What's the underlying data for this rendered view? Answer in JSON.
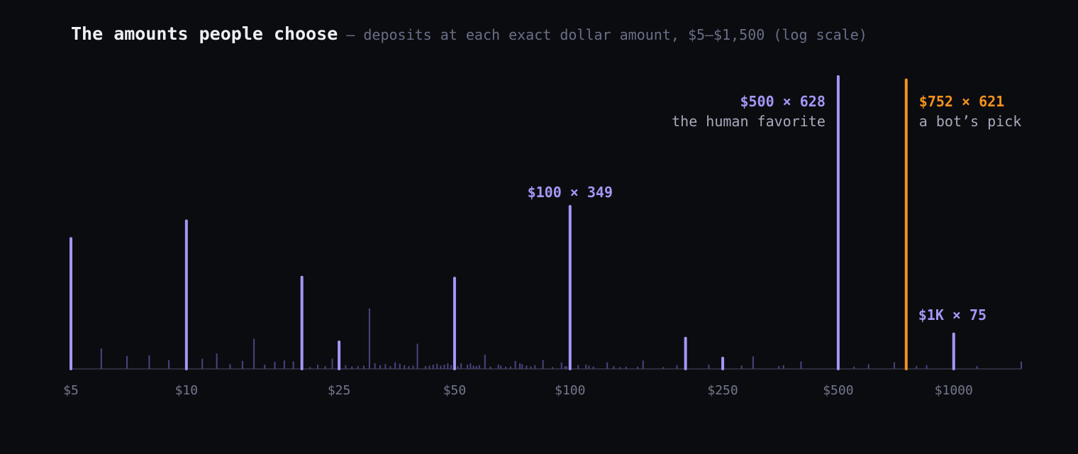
{
  "title": "The amounts people choose",
  "subtitle": "— deposits at each exact dollar amount, $5–$1,500 (log scale)",
  "colors": {
    "background": "#0b0c10",
    "bar_highlight": "#a497f6",
    "bar_minor": "#4a4380",
    "bot": "#f5921e",
    "axis": "#2b2c3a",
    "tick_text": "#73778c"
  },
  "chart_data": {
    "type": "bar",
    "title": "The amounts people choose",
    "subtitle": "deposits at each exact dollar amount, $5–$1,500 (log scale)",
    "x_scale": "log",
    "xlim": [
      5,
      1500
    ],
    "ylim": [
      0,
      628
    ],
    "grid": false,
    "x_ticks": [
      {
        "value": 5,
        "label": "$5"
      },
      {
        "value": 10,
        "label": "$10"
      },
      {
        "value": 25,
        "label": "$25"
      },
      {
        "value": 50,
        "label": "$50"
      },
      {
        "value": 100,
        "label": "$100"
      },
      {
        "value": 250,
        "label": "$250"
      },
      {
        "value": 500,
        "label": "$500"
      },
      {
        "value": 1000,
        "label": "$1000"
      }
    ],
    "series": [
      {
        "role": "highlight",
        "points": [
          {
            "x": 5,
            "y": 280
          },
          {
            "x": 10,
            "y": 318
          },
          {
            "x": 20,
            "y": 197
          },
          {
            "x": 25,
            "y": 58
          },
          {
            "x": 50,
            "y": 195
          },
          {
            "x": 100,
            "y": 349
          },
          {
            "x": 200,
            "y": 66
          },
          {
            "x": 250,
            "y": 23
          },
          {
            "x": 500,
            "y": 628
          },
          {
            "x": 1000,
            "y": 75
          }
        ]
      },
      {
        "role": "bot",
        "points": [
          {
            "x": 752,
            "y": 621
          }
        ]
      },
      {
        "role": "minor",
        "points": [
          {
            "x": 6,
            "y": 44
          },
          {
            "x": 7,
            "y": 28
          },
          {
            "x": 8,
            "y": 29
          },
          {
            "x": 9,
            "y": 19
          },
          {
            "x": 11,
            "y": 22
          },
          {
            "x": 12,
            "y": 33
          },
          {
            "x": 13,
            "y": 10
          },
          {
            "x": 14,
            "y": 17
          },
          {
            "x": 15,
            "y": 65
          },
          {
            "x": 16,
            "y": 9
          },
          {
            "x": 17,
            "y": 15
          },
          {
            "x": 18,
            "y": 18
          },
          {
            "x": 19,
            "y": 16
          },
          {
            "x": 21,
            "y": 4
          },
          {
            "x": 22,
            "y": 9
          },
          {
            "x": 23,
            "y": 6
          },
          {
            "x": 24,
            "y": 22
          },
          {
            "x": 26,
            "y": 8
          },
          {
            "x": 27,
            "y": 5
          },
          {
            "x": 28,
            "y": 6
          },
          {
            "x": 29,
            "y": 7
          },
          {
            "x": 30,
            "y": 130
          },
          {
            "x": 31,
            "y": 12
          },
          {
            "x": 32,
            "y": 8
          },
          {
            "x": 33,
            "y": 10
          },
          {
            "x": 34,
            "y": 6
          },
          {
            "x": 35,
            "y": 14
          },
          {
            "x": 36,
            "y": 11
          },
          {
            "x": 37,
            "y": 8
          },
          {
            "x": 38,
            "y": 6
          },
          {
            "x": 39,
            "y": 7
          },
          {
            "x": 40,
            "y": 54
          },
          {
            "x": 42,
            "y": 6
          },
          {
            "x": 43,
            "y": 7
          },
          {
            "x": 44,
            "y": 9
          },
          {
            "x": 45,
            "y": 11
          },
          {
            "x": 46,
            "y": 7
          },
          {
            "x": 47,
            "y": 9
          },
          {
            "x": 48,
            "y": 12
          },
          {
            "x": 49,
            "y": 8
          },
          {
            "x": 51,
            "y": 6
          },
          {
            "x": 52,
            "y": 12
          },
          {
            "x": 54,
            "y": 9
          },
          {
            "x": 55,
            "y": 12
          },
          {
            "x": 56,
            "y": 7
          },
          {
            "x": 57,
            "y": 6
          },
          {
            "x": 58,
            "y": 8
          },
          {
            "x": 60,
            "y": 31
          },
          {
            "x": 62,
            "y": 5
          },
          {
            "x": 65,
            "y": 9
          },
          {
            "x": 66,
            "y": 7
          },
          {
            "x": 68,
            "y": 5
          },
          {
            "x": 70,
            "y": 5
          },
          {
            "x": 72,
            "y": 17
          },
          {
            "x": 74,
            "y": 12
          },
          {
            "x": 75,
            "y": 10
          },
          {
            "x": 77,
            "y": 7
          },
          {
            "x": 79,
            "y": 5
          },
          {
            "x": 81,
            "y": 8
          },
          {
            "x": 85,
            "y": 19
          },
          {
            "x": 90,
            "y": 4
          },
          {
            "x": 95,
            "y": 14
          },
          {
            "x": 97,
            "y": 6
          },
          {
            "x": 98,
            "y": 5
          },
          {
            "x": 105,
            "y": 8
          },
          {
            "x": 110,
            "y": 9
          },
          {
            "x": 112,
            "y": 7
          },
          {
            "x": 115,
            "y": 5
          },
          {
            "x": 125,
            "y": 14
          },
          {
            "x": 130,
            "y": 6
          },
          {
            "x": 135,
            "y": 4
          },
          {
            "x": 140,
            "y": 5
          },
          {
            "x": 150,
            "y": 5
          },
          {
            "x": 155,
            "y": 18
          },
          {
            "x": 175,
            "y": 4
          },
          {
            "x": 190,
            "y": 8
          },
          {
            "x": 230,
            "y": 9
          },
          {
            "x": 280,
            "y": 7
          },
          {
            "x": 300,
            "y": 27
          },
          {
            "x": 350,
            "y": 6
          },
          {
            "x": 360,
            "y": 8
          },
          {
            "x": 400,
            "y": 16
          },
          {
            "x": 550,
            "y": 5
          },
          {
            "x": 600,
            "y": 10
          },
          {
            "x": 700,
            "y": 14
          },
          {
            "x": 800,
            "y": 6
          },
          {
            "x": 850,
            "y": 8
          },
          {
            "x": 1150,
            "y": 6
          },
          {
            "x": 1500,
            "y": 16
          }
        ]
      }
    ],
    "annotations": [
      {
        "x": 100,
        "headline": "$100 × 349",
        "caption": ""
      },
      {
        "x": 500,
        "headline": "$500 × 628",
        "caption": "the human favorite"
      },
      {
        "x": 752,
        "headline": "$752 × 621",
        "caption": "a bot’s pick"
      },
      {
        "x": 1000,
        "headline": "$1K × 75",
        "caption": ""
      }
    ]
  }
}
